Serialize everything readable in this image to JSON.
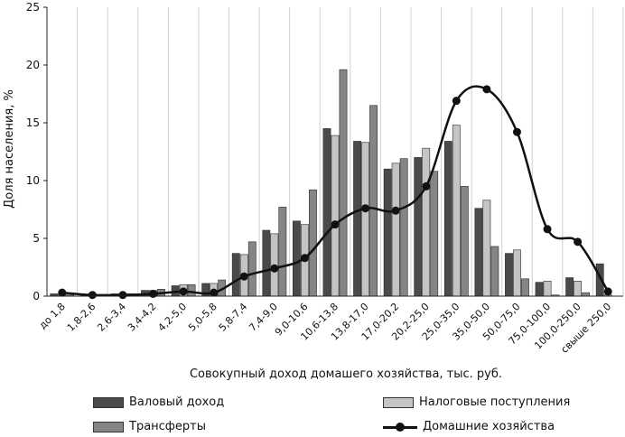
{
  "chart_data": {
    "type": "bar",
    "xlabel": "Совокупный доход домашего хозяйства, тыс. руб.",
    "ylabel": "Доля населения, %",
    "ylim": [
      0,
      25
    ],
    "yticks": [
      "0",
      "5",
      "10",
      "15",
      "20",
      "25"
    ],
    "grid": "vertical",
    "legend_position": "bottom",
    "categories": [
      "до 1,8",
      "1,8-2,6",
      "2,6-3,4",
      "3,4-4,2",
      "4,2-5,0",
      "5,0-5,8",
      "5,8-7,4",
      "7,4-9,0",
      "9,0-10,6",
      "10,6-13,8",
      "13,8-17,0",
      "17,0-20,2",
      "20,2-25,0",
      "25,0-35,0",
      "35,0-50,0",
      "50,0-75,0",
      "75,0-100,0",
      "100,0-250,0",
      "свыше 250,0"
    ],
    "series": [
      {
        "name": "Валовый доход",
        "kind": "bar",
        "color": "#4a4a4a",
        "values": [
          0.2,
          0.1,
          0.2,
          0.5,
          0.9,
          1.1,
          3.7,
          5.7,
          6.5,
          14.5,
          13.4,
          11.0,
          12.0,
          13.4,
          7.6,
          3.7,
          1.2,
          1.6,
          2.8
        ]
      },
      {
        "name": "Налоговые поступления",
        "kind": "bar",
        "color": "#c4c4c4",
        "values": [
          0.2,
          0.1,
          0.2,
          0.5,
          1.0,
          1.1,
          3.6,
          5.4,
          6.2,
          13.9,
          13.3,
          11.5,
          12.8,
          14.8,
          8.3,
          4.0,
          1.3,
          1.3,
          0.1
        ]
      },
      {
        "name": "Трансферты",
        "kind": "bar",
        "color": "#858585",
        "values": [
          0.1,
          0.1,
          0.2,
          0.6,
          1.0,
          1.4,
          4.7,
          7.7,
          9.2,
          19.6,
          16.5,
          11.9,
          10.8,
          9.5,
          4.3,
          1.5,
          0.1,
          0.3,
          0.0
        ]
      },
      {
        "name": "Домашние хозяйства",
        "kind": "line",
        "color": "#111111",
        "values": [
          0.3,
          0.1,
          0.1,
          0.2,
          0.4,
          0.3,
          1.7,
          2.4,
          3.3,
          6.2,
          7.6,
          7.4,
          9.5,
          16.9,
          17.9,
          14.2,
          5.8,
          4.7,
          0.4
        ]
      }
    ]
  }
}
